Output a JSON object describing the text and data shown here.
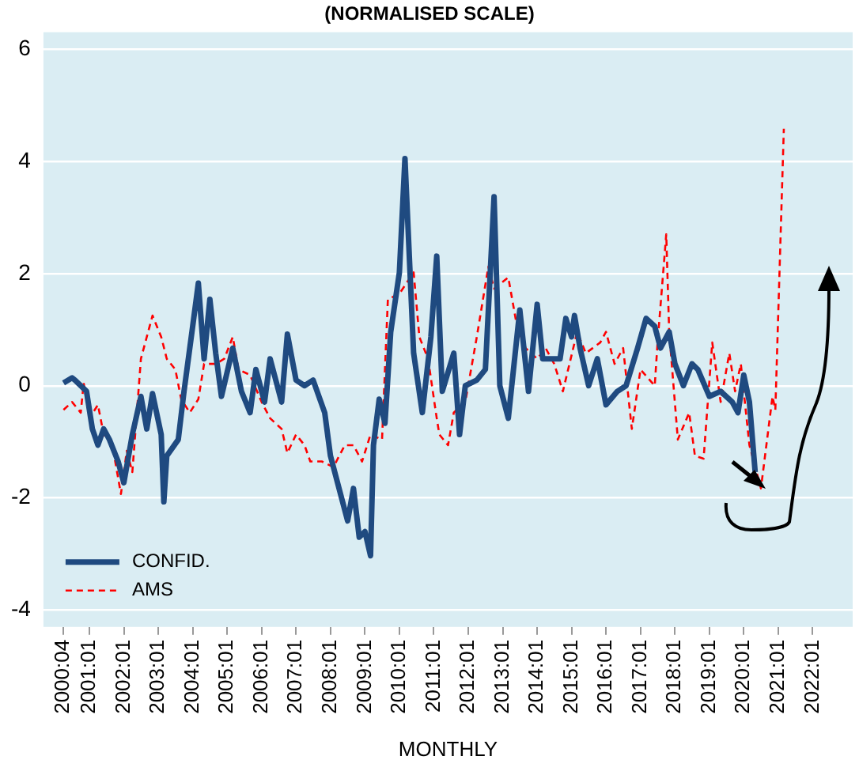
{
  "chart_data": {
    "type": "line",
    "title": "(NORMALISED SCALE)",
    "xlabel": "MONTHLY",
    "xlim": [
      "1999-09",
      "2023-03"
    ],
    "ylim": [
      -4.3,
      6.3
    ],
    "yticks": [
      -4,
      -2,
      0,
      2,
      4,
      6
    ],
    "xticks": [
      {
        "value": "2000-04",
        "label": "2000:04"
      },
      {
        "value": "2001-01",
        "label": "2001:01"
      },
      {
        "value": "2002-01",
        "label": "2002:01"
      },
      {
        "value": "2003-01",
        "label": "2003:01"
      },
      {
        "value": "2004-01",
        "label": "2004:01"
      },
      {
        "value": "2005-01",
        "label": "2005:01"
      },
      {
        "value": "2006-01",
        "label": "2006:01"
      },
      {
        "value": "2007-01",
        "label": "2007:01"
      },
      {
        "value": "2008-01",
        "label": "2008:01"
      },
      {
        "value": "2009-01",
        "label": "2009:01"
      },
      {
        "value": "2010-01",
        "label": "2010:01"
      },
      {
        "value": "2011-01",
        "label": "2011:01"
      },
      {
        "value": "2012-01",
        "label": "2012:01"
      },
      {
        "value": "2013-01",
        "label": "2013:01"
      },
      {
        "value": "2014-01",
        "label": "2014:01"
      },
      {
        "value": "2015-01",
        "label": "2015:01"
      },
      {
        "value": "2016-01",
        "label": "2016:01"
      },
      {
        "value": "2017-01",
        "label": "2017:01"
      },
      {
        "value": "2018-01",
        "label": "2018:01"
      },
      {
        "value": "2019-01",
        "label": "2019:01"
      },
      {
        "value": "2020-01",
        "label": "2020:01"
      },
      {
        "value": "2021-01",
        "label": "2021:01"
      },
      {
        "value": "2022-01",
        "label": "2022:01"
      }
    ],
    "grid": "y",
    "legend": "bottom left",
    "marker": "none",
    "series": [
      {
        "name": "CONFID.",
        "color": "#1f4a80",
        "line_style": "solid",
        "x": [
          "2000-04",
          "2000-07",
          "2000-08",
          "2000-12",
          "2001-02",
          "2001-04",
          "2001-06",
          "2001-08",
          "2001-11",
          "2002-01",
          "2002-04",
          "2002-07",
          "2002-09",
          "2002-11",
          "2003-02",
          "2003-03",
          "2003-04",
          "2003-08",
          "2003-10",
          "2004-01",
          "2004-03",
          "2004-05",
          "2004-07",
          "2004-09",
          "2004-11",
          "2005-03",
          "2005-06",
          "2005-09",
          "2005-11",
          "2006-02",
          "2006-04",
          "2006-08",
          "2006-10",
          "2007-01",
          "2007-04",
          "2007-07",
          "2007-11",
          "2008-01",
          "2008-04",
          "2008-07",
          "2008-09",
          "2008-11",
          "2009-01",
          "2009-03",
          "2009-04",
          "2009-06",
          "2009-08",
          "2009-10",
          "2010-01",
          "2010-03",
          "2010-06",
          "2010-09",
          "2010-12",
          "2011-02",
          "2011-04",
          "2011-08",
          "2011-10",
          "2011-12",
          "2012-04",
          "2012-07",
          "2012-10",
          "2012-12",
          "2013-03",
          "2013-07",
          "2013-10",
          "2014-01",
          "2014-03",
          "2014-06",
          "2014-09",
          "2014-11",
          "2015-01",
          "2015-02",
          "2015-04",
          "2015-07",
          "2015-10",
          "2016-01",
          "2016-05",
          "2016-08",
          "2016-12",
          "2017-03",
          "2017-06",
          "2017-08",
          "2017-11",
          "2018-01",
          "2018-04",
          "2018-07",
          "2018-09",
          "2019-01",
          "2019-05",
          "2019-09",
          "2019-11",
          "2020-01",
          "2020-03",
          "2020-05"
        ],
        "values": [
          0.05,
          0.14,
          0.1,
          -0.1,
          -0.77,
          -1.06,
          -0.77,
          -0.96,
          -1.35,
          -1.73,
          -0.87,
          -0.19,
          -0.77,
          -0.14,
          -0.87,
          -2.07,
          -1.25,
          -0.96,
          -0.1,
          1.06,
          1.83,
          0.48,
          1.54,
          0.58,
          -0.19,
          0.67,
          -0.1,
          -0.48,
          0.29,
          -0.29,
          0.48,
          -0.29,
          0.92,
          0.1,
          0.0,
          0.1,
          -0.48,
          -1.25,
          -1.83,
          -2.41,
          -1.83,
          -2.7,
          -2.6,
          -3.03,
          -1.06,
          -0.24,
          -0.67,
          0.96,
          2.02,
          4.05,
          0.58,
          -0.48,
          0.87,
          2.31,
          -0.1,
          0.58,
          -0.87,
          0.0,
          0.1,
          0.29,
          3.37,
          0.0,
          -0.58,
          1.35,
          -0.1,
          1.45,
          0.48,
          0.48,
          0.48,
          1.2,
          0.87,
          1.25,
          0.67,
          0.0,
          0.48,
          -0.34,
          -0.1,
          0.0,
          0.67,
          1.2,
          1.06,
          0.67,
          0.96,
          0.39,
          0.0,
          0.39,
          0.29,
          -0.19,
          -0.1,
          -0.29,
          -0.48,
          0.19,
          -0.29,
          -1.54
        ]
      },
      {
        "name": "AMS",
        "color": "#ff0000",
        "line_style": "dashed",
        "x": [
          "2000-04",
          "2000-07",
          "2000-10",
          "2000-11",
          "2001-01",
          "2001-04",
          "2001-06",
          "2001-09",
          "2001-12",
          "2002-02",
          "2002-04",
          "2002-07",
          "2002-09",
          "2002-11",
          "2003-02",
          "2003-04",
          "2003-07",
          "2003-09",
          "2003-12",
          "2004-03",
          "2004-05",
          "2004-09",
          "2004-12",
          "2005-03",
          "2005-05",
          "2005-09",
          "2006-01",
          "2006-04",
          "2006-08",
          "2006-10",
          "2007-01",
          "2007-04",
          "2007-06",
          "2007-10",
          "2008-02",
          "2008-06",
          "2008-09",
          "2008-12",
          "2009-03",
          "2009-07",
          "2009-09",
          "2010-01",
          "2010-06",
          "2010-08",
          "2010-11",
          "2011-02",
          "2011-03",
          "2011-06",
          "2011-08",
          "2011-12",
          "2012-04",
          "2012-08",
          "2012-10",
          "2013-03",
          "2013-06",
          "2013-09",
          "2014-01",
          "2014-04",
          "2014-07",
          "2014-10",
          "2015-03",
          "2015-06",
          "2015-11",
          "2016-01",
          "2016-04",
          "2016-07",
          "2016-10",
          "2017-01",
          "2017-06",
          "2017-07",
          "2017-10",
          "2017-11",
          "2018-02",
          "2018-06",
          "2018-08",
          "2018-11",
          "2019-02",
          "2019-05",
          "2019-08",
          "2019-10",
          "2019-12",
          "2020-03",
          "2020-07",
          "2020-11",
          "2020-12",
          "2021-03"
        ],
        "values": [
          -0.43,
          -0.29,
          -0.48,
          0.05,
          -0.58,
          -0.34,
          -0.87,
          -1.06,
          -1.93,
          -1.16,
          -1.54,
          0.48,
          0.87,
          1.25,
          0.87,
          0.48,
          0.29,
          -0.24,
          -0.48,
          -0.24,
          0.39,
          0.39,
          0.48,
          0.87,
          0.29,
          0.19,
          -0.29,
          -0.58,
          -0.77,
          -1.2,
          -0.87,
          -1.06,
          -1.35,
          -1.35,
          -1.45,
          -1.06,
          -1.06,
          -1.35,
          -0.87,
          -0.96,
          1.54,
          1.64,
          2.02,
          0.87,
          0.48,
          -0.58,
          -0.87,
          -1.06,
          -0.48,
          -0.29,
          0.87,
          2.12,
          1.73,
          1.93,
          1.06,
          0.67,
          0.48,
          0.67,
          0.39,
          -0.1,
          0.96,
          0.58,
          0.77,
          0.96,
          0.39,
          0.67,
          -0.77,
          0.29,
          0.0,
          0.77,
          2.7,
          0.96,
          -0.96,
          -0.48,
          -1.25,
          -1.3,
          0.77,
          -0.29,
          0.58,
          -0.1,
          0.39,
          -1.06,
          -1.83,
          -0.19,
          -0.43,
          4.58
        ]
      }
    ]
  }
}
